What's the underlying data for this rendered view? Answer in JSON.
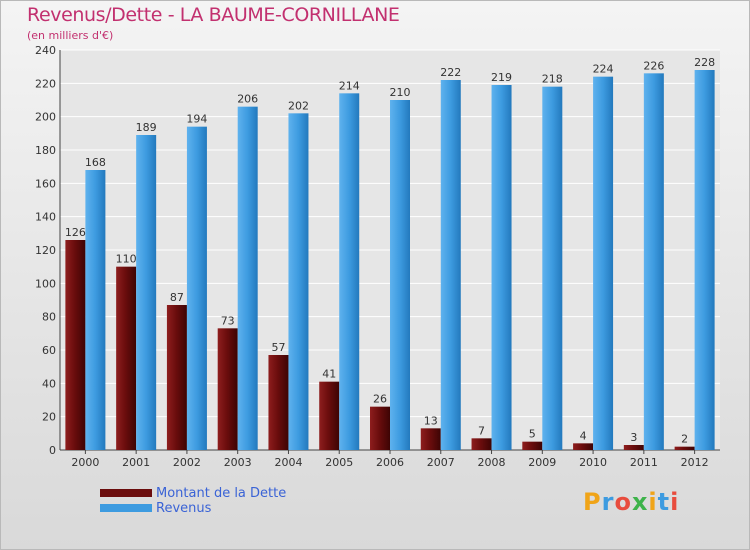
{
  "header": {
    "title": "Revenus/Dette - LA BAUME-CORNILLANE",
    "subtitle": "(en milliers d'€)"
  },
  "brand": {
    "name": "Proxiti",
    "colors": [
      "#f0a418",
      "#3d9be0",
      "#e84c3d",
      "#3db34a",
      "#f0a418",
      "#3d9be0",
      "#e84c3d"
    ]
  },
  "colors": {
    "dette": "#6b0d0d",
    "revenus": "#3d9be0",
    "title": "#c2306f",
    "legend_text": "#3a63d6"
  },
  "chart_data": {
    "type": "bar",
    "title": "Revenus/Dette - LA BAUME-CORNILLANE",
    "ylabel": "(en milliers d'€)",
    "xlabel": "",
    "ylim": [
      0,
      240
    ],
    "yticks": [
      0,
      20,
      40,
      60,
      80,
      100,
      120,
      140,
      160,
      180,
      200,
      220,
      240
    ],
    "grid": true,
    "legend_position": "bottom-left",
    "categories": [
      "2000",
      "2001",
      "2002",
      "2003",
      "2004",
      "2005",
      "2006",
      "2007",
      "2008",
      "2009",
      "2010",
      "2011",
      "2012"
    ],
    "series": [
      {
        "name": "Montant de la Dette",
        "values": [
          126,
          110,
          87,
          73,
          57,
          41,
          26,
          13,
          7,
          5,
          4,
          3,
          2
        ]
      },
      {
        "name": "Revenus",
        "values": [
          168,
          189,
          194,
          206,
          202,
          214,
          210,
          222,
          219,
          218,
          224,
          226,
          228
        ]
      }
    ]
  }
}
